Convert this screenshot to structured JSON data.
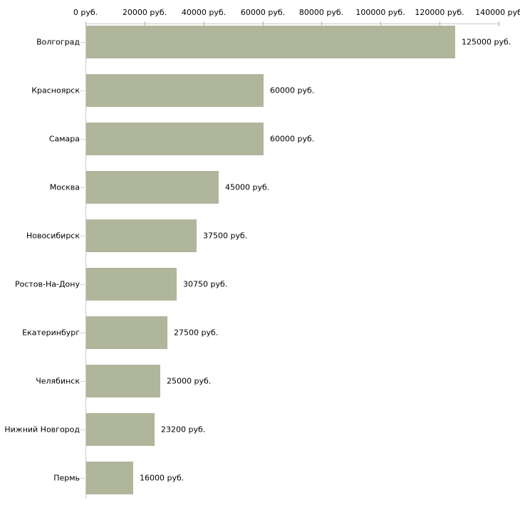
{
  "chart_data": {
    "type": "bar",
    "orientation": "horizontal",
    "title": "",
    "xlabel": "",
    "ylabel": "",
    "categories": [
      "Волгоград",
      "Красноярск",
      "Самара",
      "Москва",
      "Новосибирск",
      "Ростов-На-Дону",
      "Екатеринбург",
      "Челябинск",
      "Нижний Новгород",
      "Пермь"
    ],
    "values": [
      125000,
      60000,
      60000,
      45000,
      37500,
      30750,
      27500,
      25000,
      23200,
      16000
    ],
    "value_labels": [
      "125000 руб.",
      "60000 руб.",
      "60000 руб.",
      "45000 руб.",
      "37500 руб.",
      "30750 руб.",
      "27500 руб.",
      "25000 руб.",
      "23200 руб.",
      "16000 руб."
    ],
    "x_axis": {
      "min": 0,
      "max": 140000,
      "tick_values": [
        0,
        20000,
        40000,
        60000,
        80000,
        100000,
        120000,
        140000
      ],
      "tick_labels": [
        "0 руб.",
        "20000 руб.",
        "40000 руб.",
        "60000 руб.",
        "80000 руб.",
        "100000 руб.",
        "120000 руб.",
        "140000 руб"
      ],
      "position": "top"
    },
    "grid": false,
    "legend": false,
    "colors": {
      "bar": "#b0b69b",
      "axis_line": "#c9c9c9",
      "x_tick": "#b5b98d",
      "category_tick": "#cfcfc2",
      "text": "#000000"
    }
  }
}
